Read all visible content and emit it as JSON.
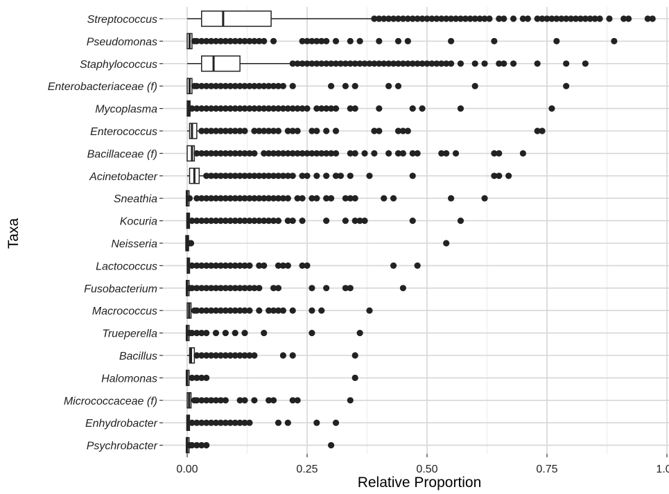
{
  "chart_data": {
    "type": "boxplot",
    "orientation": "horizontal",
    "xlabel": "Relative Proportion",
    "ylabel": "Taxa",
    "xlim": [
      0,
      1
    ],
    "x_ticks": [
      0,
      0.25,
      0.5,
      0.75,
      1.0
    ],
    "x_tick_labels": [
      "0.00",
      "0.25",
      "0.50",
      "0.75",
      "1.00"
    ],
    "grid": true,
    "colors": {
      "points": "#222222",
      "box_stroke": "#222222",
      "grid": "#d6d6d6"
    },
    "categories": [
      {
        "name": "Streptococcus",
        "box": {
          "whisker_low": 0.0,
          "q1": 0.03,
          "median": 0.075,
          "q3": 0.175,
          "whisker_high": 0.39
        },
        "outliers": [
          0.39,
          0.4,
          0.41,
          0.42,
          0.43,
          0.44,
          0.45,
          0.46,
          0.47,
          0.48,
          0.49,
          0.5,
          0.51,
          0.52,
          0.53,
          0.54,
          0.55,
          0.56,
          0.57,
          0.58,
          0.59,
          0.6,
          0.61,
          0.62,
          0.63,
          0.65,
          0.66,
          0.68,
          0.7,
          0.71,
          0.73,
          0.74,
          0.75,
          0.76,
          0.77,
          0.78,
          0.79,
          0.8,
          0.81,
          0.82,
          0.83,
          0.84,
          0.85,
          0.86,
          0.88,
          0.91,
          0.92,
          0.96,
          0.97
        ]
      },
      {
        "name": "Pseudomonas",
        "box": {
          "whisker_low": 0.0,
          "q1": 0.0,
          "median": 0.005,
          "q3": 0.01,
          "whisker_high": 0.015
        },
        "outliers": [
          0.015,
          0.02,
          0.03,
          0.04,
          0.05,
          0.06,
          0.07,
          0.08,
          0.09,
          0.1,
          0.11,
          0.12,
          0.13,
          0.14,
          0.15,
          0.16,
          0.18,
          0.24,
          0.25,
          0.26,
          0.27,
          0.28,
          0.29,
          0.31,
          0.34,
          0.36,
          0.4,
          0.44,
          0.46,
          0.55,
          0.64,
          0.77,
          0.89
        ]
      },
      {
        "name": "Staphylococcus",
        "box": {
          "whisker_low": 0.0,
          "q1": 0.03,
          "median": 0.055,
          "q3": 0.11,
          "whisker_high": 0.22
        },
        "outliers": [
          0.22,
          0.23,
          0.24,
          0.25,
          0.26,
          0.27,
          0.28,
          0.29,
          0.3,
          0.31,
          0.32,
          0.33,
          0.34,
          0.35,
          0.36,
          0.37,
          0.38,
          0.39,
          0.4,
          0.41,
          0.42,
          0.43,
          0.44,
          0.45,
          0.46,
          0.47,
          0.48,
          0.49,
          0.5,
          0.51,
          0.52,
          0.53,
          0.54,
          0.55,
          0.57,
          0.6,
          0.62,
          0.65,
          0.66,
          0.68,
          0.73,
          0.79,
          0.83
        ]
      },
      {
        "name": "Enterobacteriaceae (f)",
        "box": {
          "whisker_low": 0.0,
          "q1": 0.0,
          "median": 0.005,
          "q3": 0.01,
          "whisker_high": 0.015
        },
        "outliers": [
          0.015,
          0.02,
          0.03,
          0.04,
          0.05,
          0.06,
          0.07,
          0.08,
          0.09,
          0.1,
          0.11,
          0.12,
          0.13,
          0.14,
          0.15,
          0.16,
          0.17,
          0.18,
          0.19,
          0.2,
          0.22,
          0.3,
          0.33,
          0.35,
          0.42,
          0.44,
          0.6,
          0.79
        ]
      },
      {
        "name": "Mycoplasma",
        "box": {
          "whisker_low": 0.0,
          "q1": 0.0,
          "median": 0.003,
          "q3": 0.006,
          "whisker_high": 0.01
        },
        "outliers": [
          0.01,
          0.02,
          0.03,
          0.04,
          0.05,
          0.06,
          0.07,
          0.08,
          0.09,
          0.1,
          0.11,
          0.12,
          0.13,
          0.14,
          0.15,
          0.16,
          0.17,
          0.18,
          0.19,
          0.2,
          0.21,
          0.22,
          0.23,
          0.24,
          0.25,
          0.27,
          0.28,
          0.29,
          0.3,
          0.31,
          0.34,
          0.35,
          0.4,
          0.47,
          0.49,
          0.57,
          0.76
        ]
      },
      {
        "name": "Enterococcus",
        "box": {
          "whisker_low": 0.0,
          "q1": 0.005,
          "median": 0.01,
          "q3": 0.02,
          "whisker_high": 0.03
        },
        "outliers": [
          0.03,
          0.04,
          0.05,
          0.06,
          0.07,
          0.08,
          0.09,
          0.1,
          0.11,
          0.12,
          0.14,
          0.15,
          0.16,
          0.17,
          0.18,
          0.19,
          0.21,
          0.22,
          0.23,
          0.26,
          0.27,
          0.29,
          0.31,
          0.39,
          0.4,
          0.44,
          0.45,
          0.46,
          0.73,
          0.74
        ]
      },
      {
        "name": "Bacillaceae (f)",
        "box": {
          "whisker_low": 0.0,
          "q1": 0.0,
          "median": 0.01,
          "q3": 0.015,
          "whisker_high": 0.02
        },
        "outliers": [
          0.02,
          0.03,
          0.04,
          0.05,
          0.06,
          0.07,
          0.08,
          0.09,
          0.1,
          0.11,
          0.12,
          0.13,
          0.14,
          0.16,
          0.17,
          0.18,
          0.19,
          0.2,
          0.21,
          0.22,
          0.23,
          0.24,
          0.25,
          0.26,
          0.27,
          0.28,
          0.29,
          0.3,
          0.31,
          0.34,
          0.35,
          0.37,
          0.39,
          0.42,
          0.44,
          0.45,
          0.47,
          0.48,
          0.53,
          0.54,
          0.56,
          0.64,
          0.65,
          0.7
        ]
      },
      {
        "name": "Acinetobacter",
        "box": {
          "whisker_low": 0.0,
          "q1": 0.005,
          "median": 0.015,
          "q3": 0.025,
          "whisker_high": 0.04
        },
        "outliers": [
          0.04,
          0.05,
          0.06,
          0.07,
          0.08,
          0.09,
          0.1,
          0.11,
          0.12,
          0.13,
          0.14,
          0.15,
          0.16,
          0.17,
          0.18,
          0.19,
          0.2,
          0.21,
          0.22,
          0.24,
          0.25,
          0.27,
          0.29,
          0.31,
          0.32,
          0.34,
          0.38,
          0.47,
          0.64,
          0.65,
          0.67
        ]
      },
      {
        "name": "Sneathia",
        "box": {
          "whisker_low": 0.0,
          "q1": 0.0,
          "median": 0.0,
          "q3": 0.002,
          "whisker_high": 0.005
        },
        "outliers": [
          0.005,
          0.02,
          0.03,
          0.04,
          0.05,
          0.06,
          0.07,
          0.08,
          0.09,
          0.1,
          0.11,
          0.12,
          0.13,
          0.14,
          0.15,
          0.16,
          0.17,
          0.18,
          0.19,
          0.2,
          0.21,
          0.23,
          0.24,
          0.26,
          0.27,
          0.29,
          0.3,
          0.33,
          0.34,
          0.35,
          0.41,
          0.43,
          0.55,
          0.62
        ]
      },
      {
        "name": "Kocuria",
        "box": {
          "whisker_low": 0.0,
          "q1": 0.0,
          "median": 0.002,
          "q3": 0.004,
          "whisker_high": 0.006
        },
        "outliers": [
          0.01,
          0.02,
          0.03,
          0.04,
          0.05,
          0.06,
          0.07,
          0.08,
          0.09,
          0.1,
          0.11,
          0.12,
          0.13,
          0.14,
          0.15,
          0.16,
          0.17,
          0.18,
          0.19,
          0.21,
          0.22,
          0.24,
          0.29,
          0.33,
          0.35,
          0.36,
          0.37,
          0.47,
          0.57
        ]
      },
      {
        "name": "Neisseria",
        "box": {
          "whisker_low": 0.0,
          "q1": 0.0,
          "median": 0.0,
          "q3": 0.0,
          "whisker_high": 0.0
        },
        "outliers": [
          0.003,
          0.008,
          0.54
        ]
      },
      {
        "name": "Lactococcus",
        "box": {
          "whisker_low": 0.0,
          "q1": 0.0,
          "median": 0.002,
          "q3": 0.005,
          "whisker_high": 0.008
        },
        "outliers": [
          0.01,
          0.02,
          0.03,
          0.04,
          0.05,
          0.06,
          0.07,
          0.08,
          0.09,
          0.1,
          0.11,
          0.12,
          0.13,
          0.15,
          0.16,
          0.19,
          0.2,
          0.21,
          0.24,
          0.25,
          0.43,
          0.48
        ]
      },
      {
        "name": "Fusobacterium",
        "box": {
          "whisker_low": 0.0,
          "q1": 0.0,
          "median": 0.0,
          "q3": 0.002,
          "whisker_high": 0.004
        },
        "outliers": [
          0.005,
          0.01,
          0.02,
          0.03,
          0.04,
          0.05,
          0.06,
          0.07,
          0.08,
          0.09,
          0.1,
          0.11,
          0.12,
          0.13,
          0.14,
          0.15,
          0.18,
          0.19,
          0.26,
          0.29,
          0.33,
          0.34,
          0.45
        ]
      },
      {
        "name": "Macrococcus",
        "box": {
          "whisker_low": 0.0,
          "q1": 0.0,
          "median": 0.004,
          "q3": 0.008,
          "whisker_high": 0.012
        },
        "outliers": [
          0.015,
          0.02,
          0.03,
          0.04,
          0.05,
          0.06,
          0.07,
          0.08,
          0.09,
          0.1,
          0.11,
          0.12,
          0.13,
          0.15,
          0.17,
          0.18,
          0.19,
          0.2,
          0.22,
          0.26,
          0.28,
          0.38
        ]
      },
      {
        "name": "Trueperella",
        "box": {
          "whisker_low": 0.0,
          "q1": 0.0,
          "median": 0.0,
          "q3": 0.002,
          "whisker_high": 0.004
        },
        "outliers": [
          0.005,
          0.01,
          0.02,
          0.03,
          0.04,
          0.06,
          0.08,
          0.1,
          0.12,
          0.16,
          0.26,
          0.36
        ]
      },
      {
        "name": "Bacillus",
        "box": {
          "whisker_low": 0.0,
          "q1": 0.005,
          "median": 0.008,
          "q3": 0.015,
          "whisker_high": 0.02
        },
        "outliers": [
          0.02,
          0.03,
          0.04,
          0.05,
          0.06,
          0.07,
          0.08,
          0.09,
          0.1,
          0.11,
          0.12,
          0.13,
          0.14,
          0.2,
          0.22,
          0.35
        ]
      },
      {
        "name": "Halomonas",
        "box": {
          "whisker_low": 0.0,
          "q1": 0.0,
          "median": 0.0,
          "q3": 0.002,
          "whisker_high": 0.004
        },
        "outliers": [
          0.01,
          0.02,
          0.03,
          0.04,
          0.35
        ]
      },
      {
        "name": "Micrococcaceae (f)",
        "box": {
          "whisker_low": 0.0,
          "q1": 0.0,
          "median": 0.004,
          "q3": 0.008,
          "whisker_high": 0.012
        },
        "outliers": [
          0.015,
          0.02,
          0.03,
          0.04,
          0.05,
          0.06,
          0.07,
          0.08,
          0.11,
          0.12,
          0.14,
          0.17,
          0.18,
          0.22,
          0.23,
          0.34
        ]
      },
      {
        "name": "Enhydrobacter",
        "box": {
          "whisker_low": 0.0,
          "q1": 0.0,
          "median": 0.002,
          "q3": 0.004,
          "whisker_high": 0.006
        },
        "outliers": [
          0.01,
          0.02,
          0.03,
          0.04,
          0.05,
          0.06,
          0.07,
          0.08,
          0.09,
          0.1,
          0.11,
          0.12,
          0.13,
          0.19,
          0.21,
          0.27,
          0.31
        ]
      },
      {
        "name": "Psychrobacter",
        "box": {
          "whisker_low": 0.0,
          "q1": 0.0,
          "median": 0.0,
          "q3": 0.002,
          "whisker_high": 0.004
        },
        "outliers": [
          0.005,
          0.01,
          0.02,
          0.03,
          0.04,
          0.3
        ]
      }
    ]
  }
}
